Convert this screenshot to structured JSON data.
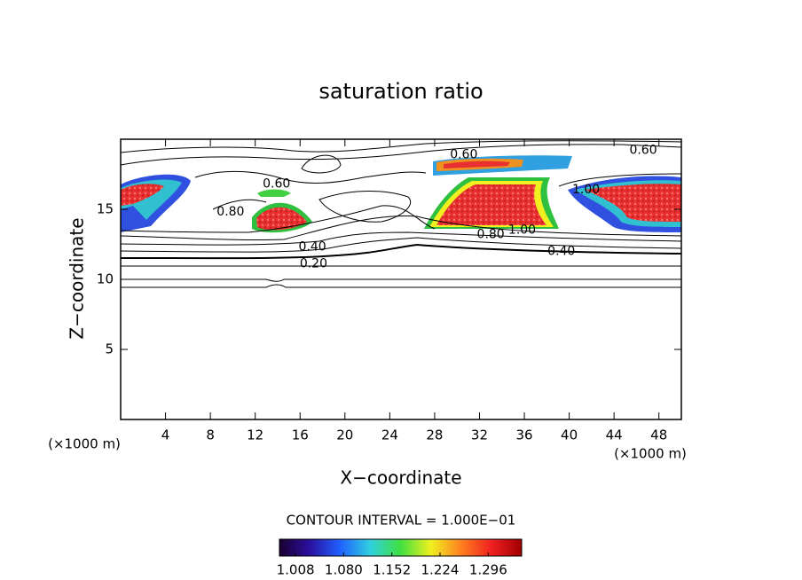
{
  "chart_data": {
    "type": "contour",
    "title": "saturation ratio",
    "xlabel": "X−coordinate",
    "ylabel": "Z−coordinate",
    "xunit": "(×1000 m)",
    "yunit": "(×1000 m)",
    "xlim": [
      0,
      50
    ],
    "ylim": [
      0,
      20
    ],
    "xticks": [
      4,
      8,
      12,
      16,
      20,
      24,
      28,
      32,
      36,
      40,
      44,
      48
    ],
    "yticks": [
      5,
      10,
      15
    ],
    "contour_interval": "CONTOUR INTERVAL = 1.000E−01",
    "annotations": [
      {
        "text": "0.60",
        "x": 30.6,
        "y": 18.9
      },
      {
        "text": "0.60",
        "x": 46.6,
        "y": 19.2
      },
      {
        "text": "1.00",
        "x": 41.5,
        "y": 16.4
      },
      {
        "text": "0.60",
        "x": 13.9,
        "y": 16.8
      },
      {
        "text": "0.80",
        "x": 9.8,
        "y": 14.8
      },
      {
        "text": "0.80",
        "x": 33.0,
        "y": 13.2
      },
      {
        "text": "1.00",
        "x": 35.8,
        "y": 13.5
      },
      {
        "text": "0.40",
        "x": 39.3,
        "y": 12.0
      },
      {
        "text": "0.40",
        "x": 17.1,
        "y": 12.3
      },
      {
        "text": "0.20",
        "x": 17.2,
        "y": 11.1
      }
    ],
    "colorbar": {
      "lim": [
        0.984,
        1.346
      ],
      "ticks": [
        1.008,
        {
          "value": 1.08,
          "label": "1.080"
        },
        1.152,
        1.224,
        1.296
      ],
      "colors": [
        "#1a0030",
        "#2a10a0",
        "#2060ff",
        "#30d0e0",
        "#40e040",
        "#f0f020",
        "#ff8020",
        "#f02020",
        "#a00000"
      ]
    }
  }
}
